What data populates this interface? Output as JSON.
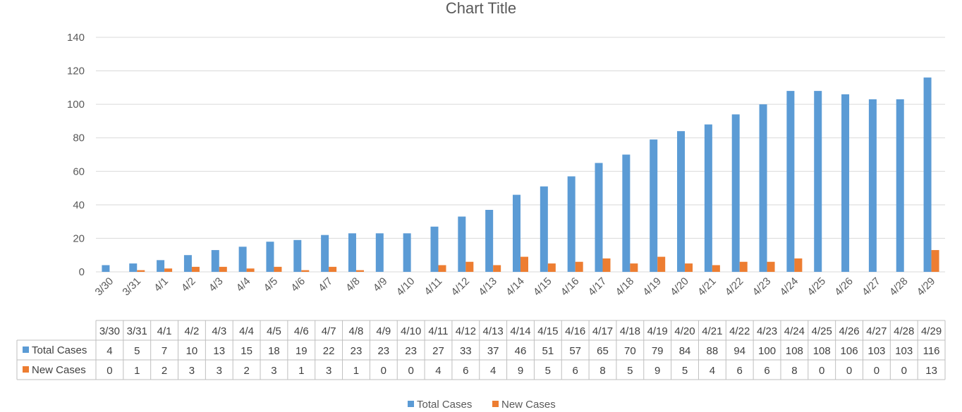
{
  "colors": {
    "total_cases": "#5B9BD5",
    "new_cases": "#ED7D31",
    "gridline": "#D9D9D9",
    "table_border": "#BFBFBF",
    "axis_line": "#BFBFBF"
  },
  "chart_data": {
    "type": "bar",
    "title": "Chart Title",
    "xlabel": "",
    "ylabel": "",
    "ylim": [
      0,
      140
    ],
    "yticks": [
      0,
      20,
      40,
      60,
      80,
      100,
      120,
      140
    ],
    "grid": true,
    "legend_position": "bottom",
    "data_table": true,
    "categories": [
      "3/30",
      "3/31",
      "4/1",
      "4/2",
      "4/3",
      "4/4",
      "4/5",
      "4/6",
      "4/7",
      "4/8",
      "4/9",
      "4/10",
      "4/11",
      "4/12",
      "4/13",
      "4/14",
      "4/15",
      "4/16",
      "4/17",
      "4/18",
      "4/19",
      "4/20",
      "4/21",
      "4/22",
      "4/23",
      "4/24",
      "4/25",
      "4/26",
      "4/27",
      "4/28",
      "4/29"
    ],
    "series": [
      {
        "name": "Total Cases",
        "color": "#5B9BD5",
        "values": [
          4,
          5,
          7,
          10,
          13,
          15,
          18,
          19,
          22,
          23,
          23,
          23,
          27,
          33,
          37,
          46,
          51,
          57,
          65,
          70,
          79,
          84,
          88,
          94,
          100,
          108,
          108,
          106,
          103,
          103,
          116
        ]
      },
      {
        "name": "New Cases",
        "color": "#ED7D31",
        "values": [
          0,
          1,
          2,
          3,
          3,
          2,
          3,
          1,
          3,
          1,
          0,
          0,
          4,
          6,
          4,
          9,
          5,
          6,
          8,
          5,
          9,
          5,
          4,
          6,
          6,
          8,
          0,
          0,
          0,
          0,
          13
        ]
      }
    ]
  }
}
